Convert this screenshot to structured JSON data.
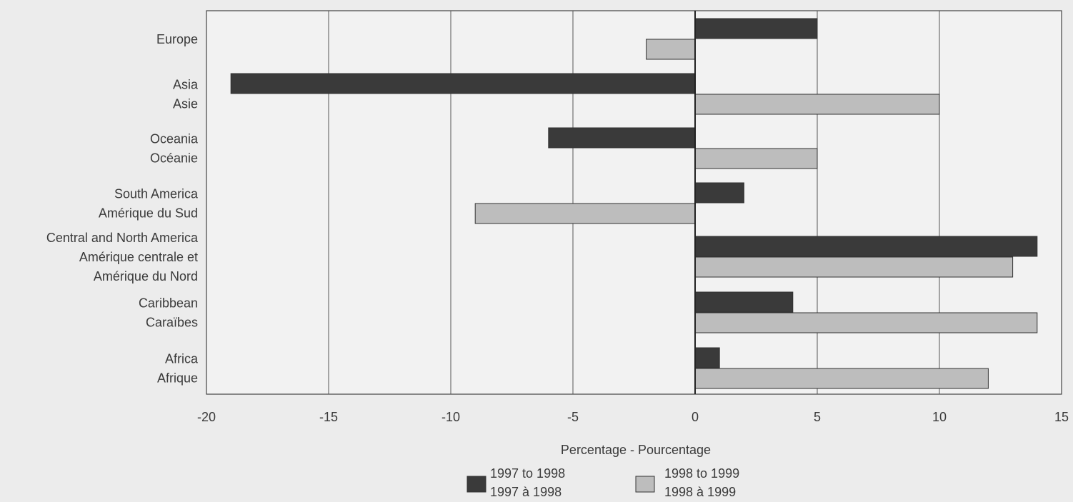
{
  "chart_data": {
    "type": "bar",
    "orientation": "horizontal",
    "categories": [
      [
        "Europe"
      ],
      [
        "Asia",
        "Asie"
      ],
      [
        "Oceania",
        "Océanie"
      ],
      [
        "South America",
        "Amérique du Sud"
      ],
      [
        "Central and North America",
        "Amérique centrale et",
        "Amérique du Nord"
      ],
      [
        "Caribbean",
        "Caraïbes"
      ],
      [
        "Africa",
        "Afrique"
      ]
    ],
    "series": [
      {
        "name": "1997 to 1998 / 1997 à 1998",
        "color": "#3a3a3a",
        "values": [
          5,
          -19,
          -6,
          2,
          14,
          4,
          1
        ]
      },
      {
        "name": "1998 to 1999 / 1998 à 1999",
        "color": "#bdbdbd",
        "values": [
          -2,
          10,
          5,
          -9,
          13,
          14,
          12
        ]
      }
    ],
    "xlabel": "Percentage - Pourcentage",
    "ylabel": "",
    "xlim": [
      -20,
      15
    ],
    "xticks": [
      "-20",
      "-15",
      "-10",
      "-5",
      "0",
      "5",
      "10",
      "15"
    ],
    "grid": "vertical",
    "legend": {
      "placement": "bottom-center",
      "items": [
        {
          "line1": "1997 to 1998",
          "line2": "1997  à 1998",
          "color": "#3a3a3a"
        },
        {
          "line1": "1998  to 1999",
          "line2": "1998  à 1999",
          "color": "#bdbdbd"
        }
      ]
    }
  }
}
